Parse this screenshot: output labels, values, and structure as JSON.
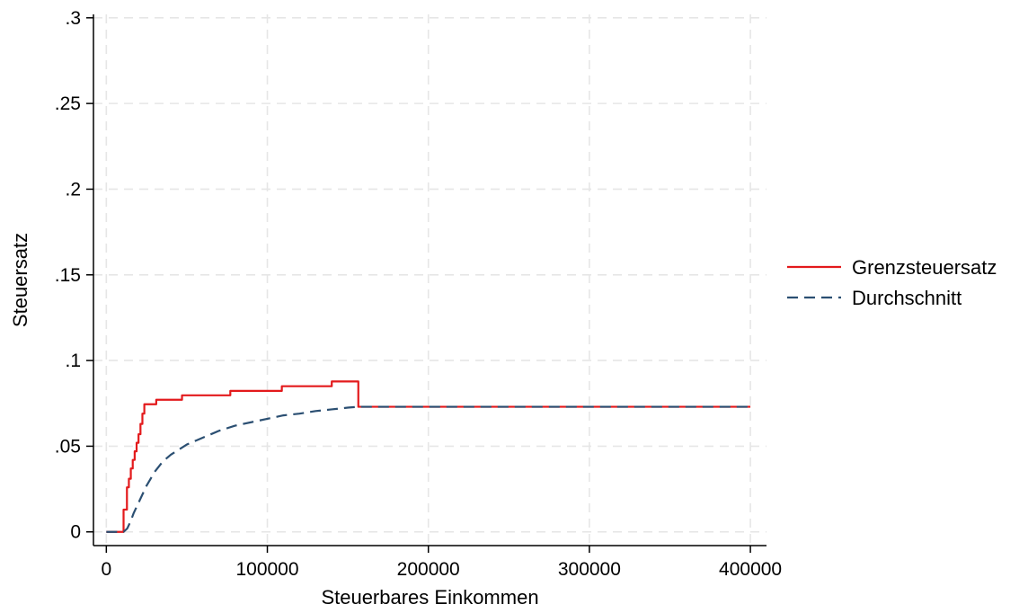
{
  "chart_data": {
    "type": "line",
    "xlabel": "Steuerbares Einkommen",
    "ylabel": "Steuersatz",
    "xlim": [
      -8000,
      410000
    ],
    "ylim": [
      -0.008,
      0.302
    ],
    "xticks": [
      0,
      100000,
      200000,
      300000,
      400000
    ],
    "xtick_labels": [
      "0",
      "100000",
      "200000",
      "300000",
      "400000"
    ],
    "yticks": [
      0,
      0.05,
      0.1,
      0.15,
      0.2,
      0.25,
      0.3
    ],
    "ytick_labels": [
      "0",
      ".05",
      ".1",
      ".15",
      ".2",
      ".25",
      ".3"
    ],
    "grid": true,
    "legend_position": "right",
    "series": [
      {
        "name": "Grenzsteuersatz",
        "style": "step",
        "color": "#e31a1c",
        "dash": "solid",
        "points": [
          [
            0,
            0
          ],
          [
            10700,
            0
          ],
          [
            10700,
            0.013
          ],
          [
            12800,
            0.013
          ],
          [
            12800,
            0.026
          ],
          [
            14000,
            0.026
          ],
          [
            14000,
            0.031
          ],
          [
            15200,
            0.031
          ],
          [
            15200,
            0.037
          ],
          [
            16400,
            0.037
          ],
          [
            16400,
            0.042
          ],
          [
            17600,
            0.042
          ],
          [
            17600,
            0.047
          ],
          [
            18800,
            0.047
          ],
          [
            18800,
            0.052
          ],
          [
            20000,
            0.052
          ],
          [
            20000,
            0.057
          ],
          [
            21200,
            0.057
          ],
          [
            21200,
            0.063
          ],
          [
            22400,
            0.063
          ],
          [
            22400,
            0.069
          ],
          [
            23600,
            0.069
          ],
          [
            23600,
            0.0745
          ],
          [
            31000,
            0.0745
          ],
          [
            31000,
            0.0771
          ],
          [
            47000,
            0.0771
          ],
          [
            47000,
            0.0797
          ],
          [
            77000,
            0.0797
          ],
          [
            77000,
            0.0823
          ],
          [
            109000,
            0.0823
          ],
          [
            109000,
            0.085
          ],
          [
            140000,
            0.085
          ],
          [
            140000,
            0.0878
          ],
          [
            156500,
            0.0878
          ],
          [
            156500,
            0.073
          ],
          [
            400000,
            0.073
          ]
        ]
      },
      {
        "name": "Durchschnitt",
        "style": "curve",
        "color": "#2b4f72",
        "dash": "dashed",
        "points": [
          [
            0,
            0
          ],
          [
            10700,
            0
          ],
          [
            13000,
            0.002
          ],
          [
            15000,
            0.006
          ],
          [
            17000,
            0.011
          ],
          [
            20000,
            0.017
          ],
          [
            25000,
            0.027
          ],
          [
            30000,
            0.035
          ],
          [
            35000,
            0.041
          ],
          [
            40000,
            0.045
          ],
          [
            50000,
            0.051
          ],
          [
            60000,
            0.055
          ],
          [
            70000,
            0.059
          ],
          [
            80000,
            0.062
          ],
          [
            90000,
            0.064
          ],
          [
            100000,
            0.066
          ],
          [
            110000,
            0.068
          ],
          [
            120000,
            0.069
          ],
          [
            130000,
            0.0705
          ],
          [
            140000,
            0.0715
          ],
          [
            150000,
            0.0725
          ],
          [
            156500,
            0.073
          ],
          [
            400000,
            0.073
          ]
        ]
      }
    ]
  }
}
